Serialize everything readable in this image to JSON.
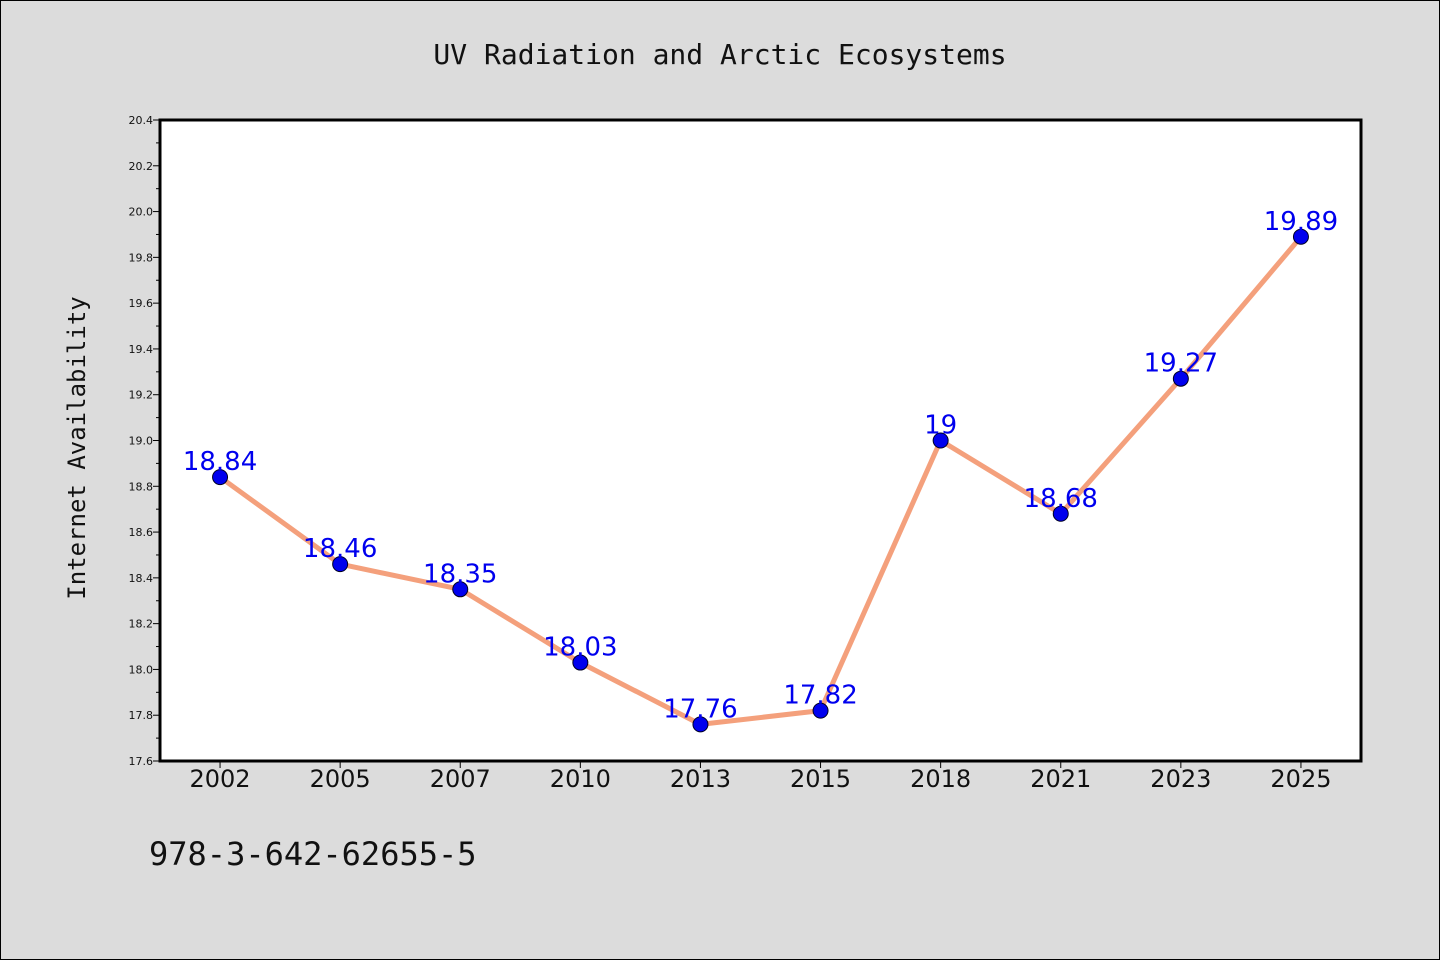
{
  "chart_data": {
    "type": "line",
    "title": "UV Radiation and Arctic Ecosystems",
    "xlabel": "",
    "ylabel": "Internet Availability",
    "categories": [
      "2002",
      "2005",
      "2007",
      "2010",
      "2013",
      "2015",
      "2018",
      "2021",
      "2023",
      "2025"
    ],
    "series": [
      {
        "values": [
          18.84,
          18.46,
          18.35,
          18.03,
          17.76,
          17.82,
          19.0,
          18.68,
          19.27,
          19.89
        ],
        "data_labels": [
          "18.84",
          "18.46",
          "18.35",
          "18.03",
          "17.76",
          "17.82",
          "19",
          "18.68",
          "19.27",
          "19.89"
        ],
        "line_color": "#f4a07c",
        "marker_color": "#0000ee",
        "label_color": "#0000ee"
      }
    ],
    "ylim": [
      17.6,
      20.4
    ],
    "yticks": [
      "17.6",
      "17.8",
      "18.0",
      "18.2",
      "18.4",
      "18.6",
      "18.8",
      "19.0",
      "19.2",
      "19.4",
      "19.6",
      "19.8",
      "20.0",
      "20.2",
      "20.4"
    ],
    "grid": false,
    "legend": "none",
    "background_color": "#dcdcdc",
    "plot_background_color": "#ffffff"
  },
  "footnote": "978-3-642-62655-5"
}
